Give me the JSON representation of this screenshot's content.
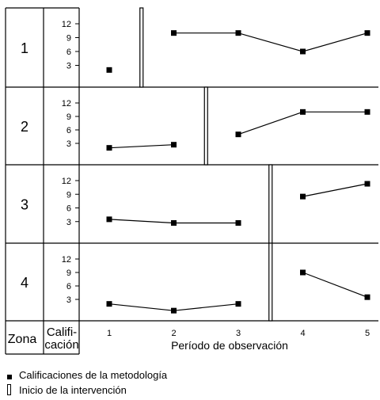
{
  "chart_data": {
    "type": "line",
    "x": [
      1,
      2,
      3,
      4,
      5
    ],
    "xlabel": "Período de observación",
    "xticks": [
      "1",
      "2",
      "3",
      "4",
      "5"
    ],
    "ylabel": "Califi-\ncación",
    "yticks": [
      "3",
      "6",
      "9",
      "12"
    ],
    "ylim": [
      0,
      14
    ],
    "zone_header": "Zona",
    "panels": [
      {
        "zone": "1",
        "values": [
          2,
          10,
          10,
          6,
          10
        ],
        "intervention_after_x": 1.5
      },
      {
        "zone": "2",
        "values": [
          2,
          2.7,
          5,
          10,
          10
        ],
        "intervention_after_x": 2.5
      },
      {
        "zone": "3",
        "values": [
          3.5,
          2.7,
          2.7,
          8.5,
          11.3
        ],
        "intervention_after_x": 3.5
      },
      {
        "zone": "4",
        "values": [
          2,
          0.5,
          2,
          9,
          3.5
        ],
        "intervention_after_x": 3.5
      }
    ],
    "legend": [
      {
        "symbol": "square",
        "label": "Calificaciones de la metodología"
      },
      {
        "symbol": "bar",
        "label": "Inicio de la intervención"
      }
    ],
    "grid": false
  }
}
